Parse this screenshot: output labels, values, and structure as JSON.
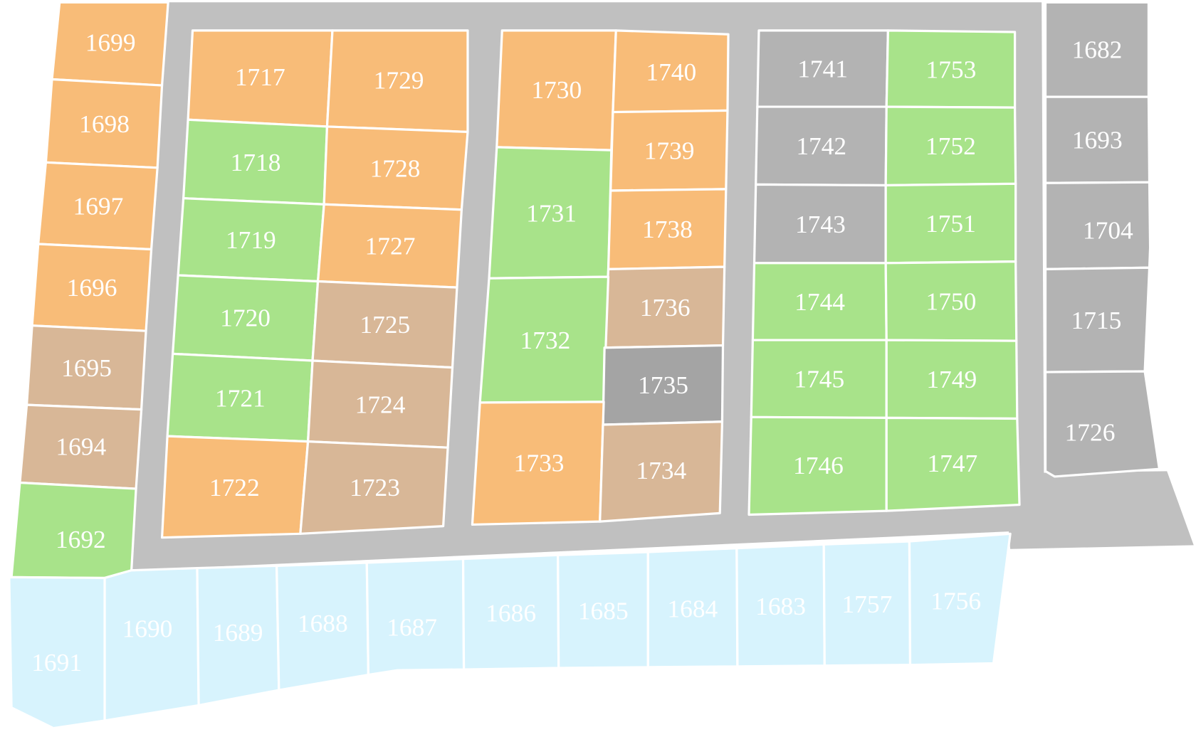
{
  "lots": [
    {
      "label": "1699",
      "color": "#f8bc78"
    },
    {
      "label": "1698",
      "color": "#f8bc78"
    },
    {
      "label": "1697",
      "color": "#f8bc78"
    },
    {
      "label": "1696",
      "color": "#f8bc78"
    },
    {
      "label": "1695",
      "color": "#d8b797"
    },
    {
      "label": "1694",
      "color": "#d8b797"
    },
    {
      "label": "1692",
      "color": "#a8e38a"
    },
    {
      "label": "1717",
      "color": "#f8bc78"
    },
    {
      "label": "1729",
      "color": "#f8bc78"
    },
    {
      "label": "1718",
      "color": "#a8e38a"
    },
    {
      "label": "1728",
      "color": "#f8bc78"
    },
    {
      "label": "1719",
      "color": "#a8e38a"
    },
    {
      "label": "1727",
      "color": "#f8bc78"
    },
    {
      "label": "1720",
      "color": "#a8e38a"
    },
    {
      "label": "1725",
      "color": "#d8b797"
    },
    {
      "label": "1721",
      "color": "#a8e38a"
    },
    {
      "label": "1724",
      "color": "#d8b797"
    },
    {
      "label": "1722",
      "color": "#f8bc78"
    },
    {
      "label": "1723",
      "color": "#d8b797"
    },
    {
      "label": "1730",
      "color": "#f8bc78"
    },
    {
      "label": "1740",
      "color": "#f8bc78"
    },
    {
      "label": "1739",
      "color": "#f8bc78"
    },
    {
      "label": "1731",
      "color": "#a8e38a"
    },
    {
      "label": "1738",
      "color": "#f8bc78"
    },
    {
      "label": "1736",
      "color": "#d8b797"
    },
    {
      "label": "1732",
      "color": "#a8e38a"
    },
    {
      "label": "1735",
      "color": "#a4a4a4"
    },
    {
      "label": "1733",
      "color": "#f8bc78"
    },
    {
      "label": "1734",
      "color": "#d8b797"
    },
    {
      "label": "1741",
      "color": "#b3b3b3"
    },
    {
      "label": "1753",
      "color": "#a8e38a"
    },
    {
      "label": "1742",
      "color": "#b3b3b3"
    },
    {
      "label": "1752",
      "color": "#a8e38a"
    },
    {
      "label": "1743",
      "color": "#b3b3b3"
    },
    {
      "label": "1751",
      "color": "#a8e38a"
    },
    {
      "label": "1744",
      "color": "#a8e38a"
    },
    {
      "label": "1750",
      "color": "#a8e38a"
    },
    {
      "label": "1745",
      "color": "#a8e38a"
    },
    {
      "label": "1749",
      "color": "#a8e38a"
    },
    {
      "label": "1746",
      "color": "#a8e38a"
    },
    {
      "label": "1747",
      "color": "#a8e38a"
    },
    {
      "label": "1682",
      "color": "#b3b3b3"
    },
    {
      "label": "1693",
      "color": "#b3b3b3"
    },
    {
      "label": "1704",
      "color": "#b3b3b3"
    },
    {
      "label": "1715",
      "color": "#b3b3b3"
    },
    {
      "label": "1726",
      "color": "#b3b3b3"
    },
    {
      "label": "1691",
      "color": "#d7f3fd"
    },
    {
      "label": "1690",
      "color": "#d7f3fd"
    },
    {
      "label": "1689",
      "color": "#d7f3fd"
    },
    {
      "label": "1688",
      "color": "#d7f3fd"
    },
    {
      "label": "1687",
      "color": "#d7f3fd"
    },
    {
      "label": "1686",
      "color": "#d7f3fd"
    },
    {
      "label": "1685",
      "color": "#d7f3fd"
    },
    {
      "label": "1684",
      "color": "#d7f3fd"
    },
    {
      "label": "1683",
      "color": "#d7f3fd"
    },
    {
      "label": "1757",
      "color": "#d7f3fd"
    },
    {
      "label": "1756",
      "color": "#d7f3fd"
    }
  ]
}
